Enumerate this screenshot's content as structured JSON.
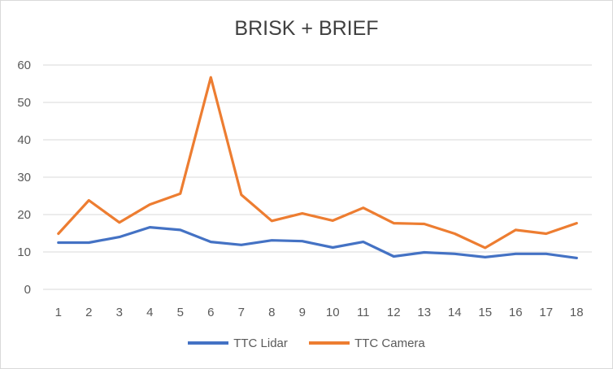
{
  "chart_data": {
    "type": "line",
    "title": "BRISK + BRIEF",
    "xlabel": "",
    "ylabel": "",
    "categories": [
      "1",
      "2",
      "3",
      "4",
      "5",
      "6",
      "7",
      "8",
      "9",
      "10",
      "11",
      "12",
      "13",
      "14",
      "15",
      "16",
      "17",
      "18"
    ],
    "ylim": [
      0,
      60
    ],
    "yticks": [
      0,
      10,
      20,
      30,
      40,
      50,
      60
    ],
    "grid": true,
    "legend": "bottom",
    "series": [
      {
        "name": "TTC Lidar",
        "color": "#4472c4",
        "values": [
          12.5,
          12.5,
          14.0,
          16.6,
          15.9,
          12.7,
          11.9,
          13.1,
          12.9,
          11.2,
          12.7,
          8.8,
          9.9,
          9.5,
          8.6,
          9.5,
          9.5,
          8.4
        ]
      },
      {
        "name": "TTC Camera",
        "color": "#ed7d31",
        "values": [
          14.9,
          23.8,
          17.9,
          22.7,
          25.6,
          56.7,
          25.3,
          18.3,
          20.3,
          18.4,
          21.8,
          17.7,
          17.5,
          14.9,
          11.1,
          15.9,
          14.9,
          17.7
        ]
      }
    ]
  }
}
